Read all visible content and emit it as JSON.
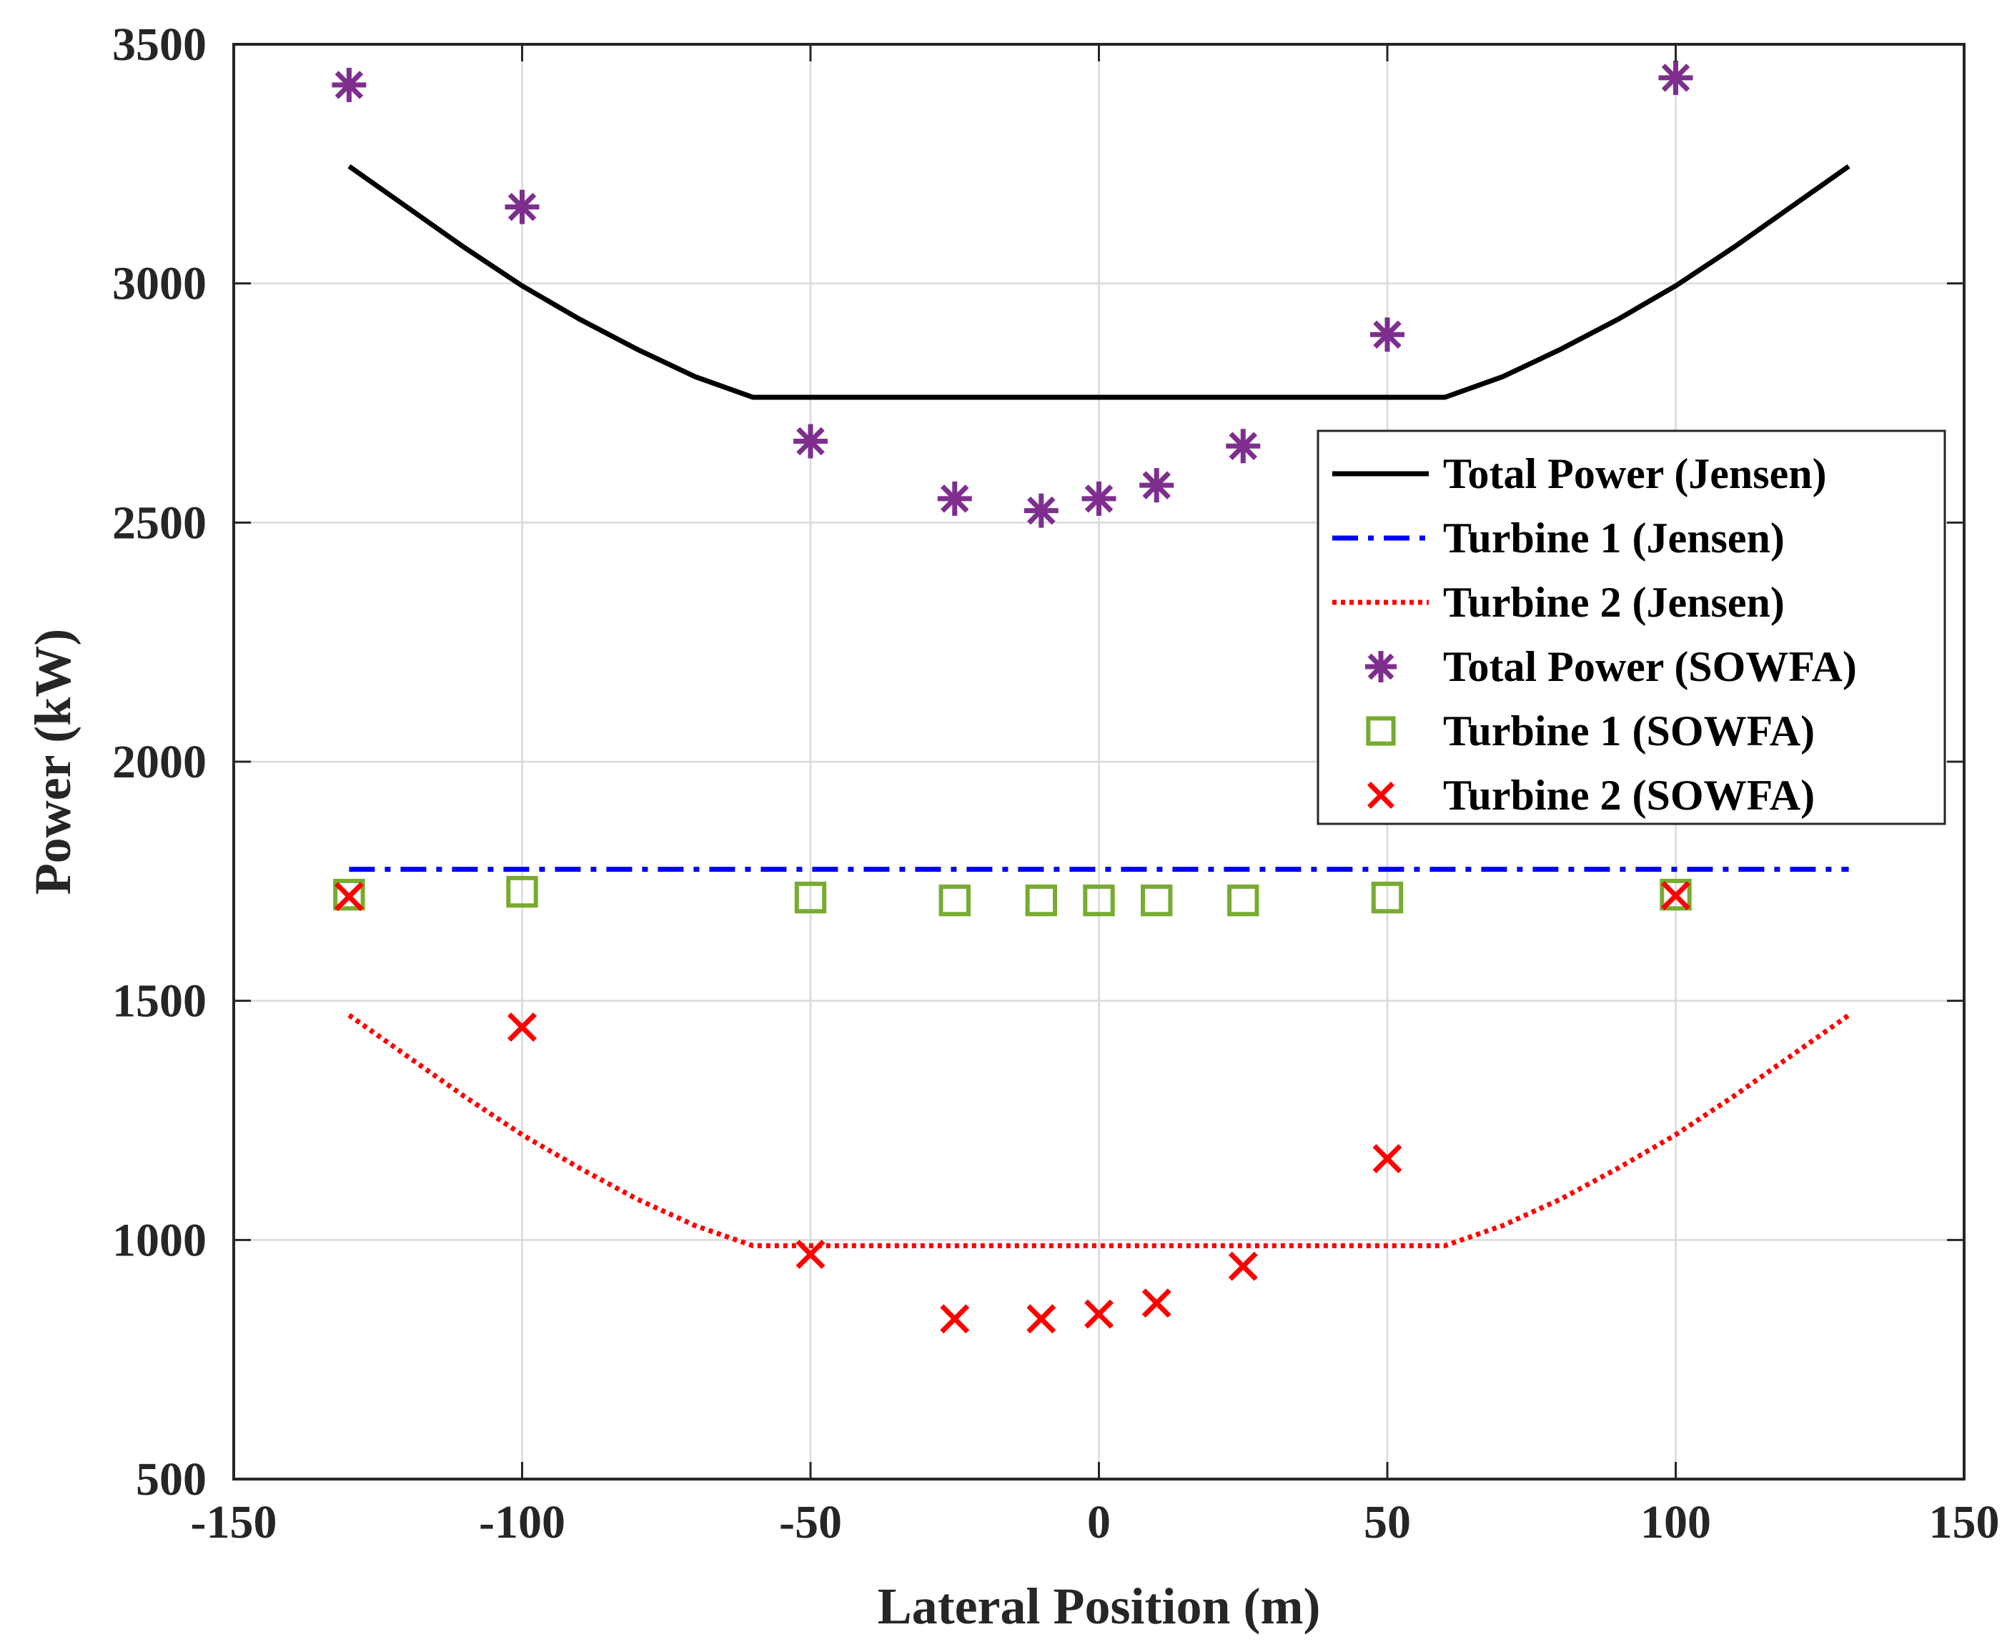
{
  "chart_data": {
    "type": "line+scatter",
    "title": "",
    "xlabel": "Lateral Position (m)",
    "ylabel": "Power (kW)",
    "xlim": [
      -150,
      150
    ],
    "ylim": [
      500,
      3500
    ],
    "xticks": [
      -150,
      -100,
      -50,
      0,
      50,
      100,
      150
    ],
    "yticks": [
      500,
      1000,
      1500,
      2000,
      2500,
      3000,
      3500
    ],
    "grid": true,
    "legend_position": "upper-right",
    "series": [
      {
        "name": "Total Power (Jensen)",
        "kind": "line",
        "style": "solid",
        "color": "#000000",
        "x": [
          -130,
          -120,
          -110,
          -100,
          -90,
          -80,
          -70,
          -60,
          60,
          70,
          80,
          90,
          100,
          110,
          120,
          130
        ],
        "y": [
          3245,
          3160,
          3075,
          2995,
          2925,
          2862,
          2805,
          2762,
          2762,
          2805,
          2862,
          2925,
          2995,
          3075,
          3160,
          3245
        ]
      },
      {
        "name": "Turbine 1   (Jensen)",
        "kind": "line",
        "style": "dash-dot",
        "color": "#0000ff",
        "x": [
          -130,
          130
        ],
        "y": [
          1775,
          1775
        ]
      },
      {
        "name": "Turbine 2   (Jensen)",
        "kind": "line",
        "style": "dotted",
        "color": "#ff0000",
        "x": [
          -130,
          -120,
          -110,
          -100,
          -90,
          -80,
          -70,
          -60,
          60,
          70,
          80,
          90,
          100,
          110,
          120,
          130
        ],
        "y": [
          1470,
          1385,
          1300,
          1220,
          1150,
          1085,
          1030,
          988,
          988,
          1030,
          1085,
          1150,
          1220,
          1300,
          1385,
          1470
        ]
      },
      {
        "name": "Total Power (SOWFA)",
        "kind": "scatter",
        "marker": "asterisk",
        "color": "#7e2f8e",
        "x": [
          -130,
          -100,
          -50,
          -25,
          -10,
          0,
          10,
          25,
          50,
          100
        ],
        "y": [
          3415,
          3160,
          2670,
          2550,
          2525,
          2550,
          2578,
          2660,
          2893,
          3430
        ]
      },
      {
        "name": "Turbine 1   (SOWFA)",
        "kind": "scatter",
        "marker": "square",
        "color": "#77ac30",
        "x": [
          -130,
          -100,
          -50,
          -25,
          -10,
          0,
          10,
          25,
          50,
          100
        ],
        "y": [
          1722,
          1728,
          1716,
          1710,
          1710,
          1710,
          1710,
          1710,
          1716,
          1722
        ]
      },
      {
        "name": "Turbine 2   (SOWFA)",
        "kind": "scatter",
        "marker": "x",
        "color": "#ff0000",
        "x": [
          -130,
          -100,
          -50,
          -25,
          -10,
          0,
          10,
          25,
          50,
          100
        ],
        "y": [
          1718,
          1445,
          970,
          835,
          835,
          845,
          868,
          945,
          1170,
          1720
        ]
      }
    ]
  }
}
